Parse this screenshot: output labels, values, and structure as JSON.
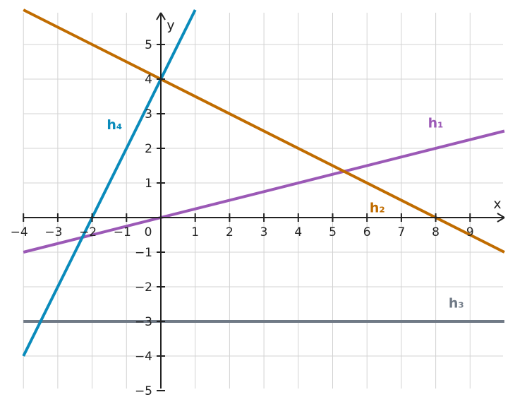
{
  "chart_data": {
    "type": "line",
    "title": "",
    "xlabel": "x",
    "ylabel": "y",
    "xlim": [
      -4,
      10
    ],
    "ylim": [
      -5,
      6
    ],
    "grid": true,
    "x_ticks": [
      -4,
      -3,
      -2,
      -1,
      0,
      1,
      2,
      3,
      4,
      5,
      6,
      7,
      8,
      9
    ],
    "y_ticks": [
      -5,
      -4,
      -3,
      -2,
      -1,
      1,
      2,
      3,
      4,
      5
    ],
    "x_tick_labels": [
      "−4",
      "−3",
      "−2",
      "−1",
      "0",
      "1",
      "2",
      "3",
      "4",
      "5",
      "6",
      "7",
      "8",
      "9"
    ],
    "y_tick_labels": [
      "−5",
      "−4",
      "−3",
      "−2",
      "−1",
      "1",
      "2",
      "3",
      "4",
      "5"
    ],
    "series": [
      {
        "name": "h₁",
        "color": "#9b59b6",
        "x": [
          -4,
          10
        ],
        "y": [
          -1,
          2.5
        ],
        "label_at": [
          8.0,
          2.6
        ]
      },
      {
        "name": "h₂",
        "color": "#c06c00",
        "x": [
          -4,
          10
        ],
        "y": [
          6,
          -1
        ],
        "label_at": [
          6.3,
          0.15
        ]
      },
      {
        "name": "h₃",
        "color": "#707a86",
        "x": [
          -4,
          10
        ],
        "y": [
          -3,
          -3
        ],
        "label_at": [
          8.6,
          -2.6
        ]
      },
      {
        "name": "h₄",
        "color": "#0a8bbb",
        "x": [
          -4,
          1
        ],
        "y": [
          -4,
          6
        ],
        "label_at": [
          -1.35,
          2.55
        ]
      }
    ]
  }
}
